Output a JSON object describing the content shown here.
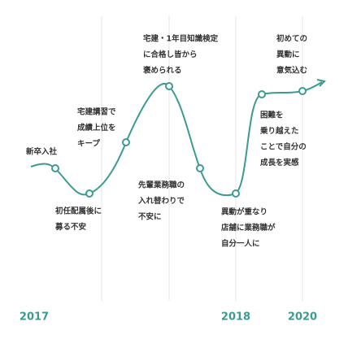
{
  "events": [
    {
      "lines": [
        "新卒入社"
      ]
    },
    {
      "lines": [
        "初任配属後に",
        "募る不安"
      ]
    },
    {
      "lines": [
        "宅建講習で",
        "成績上位を",
        "キープ"
      ]
    },
    {
      "lines": [
        "宅建・1年目知識検定",
        "に合格し皆から",
        "褒められる"
      ]
    },
    {
      "lines": [
        "先輩業務職の",
        "入れ替わりで",
        "不安に"
      ]
    },
    {
      "lines": [
        "異動が重なり",
        "店舗に業務職が",
        "自分一人に"
      ]
    },
    {
      "lines": [
        "困難を",
        "乗り越えた",
        "ことで自分の",
        "成長を実感"
      ]
    },
    {
      "lines": [
        "初めての",
        "異動に",
        "意気込む"
      ]
    }
  ],
  "years": [
    "2017",
    "2018",
    "2020"
  ]
}
